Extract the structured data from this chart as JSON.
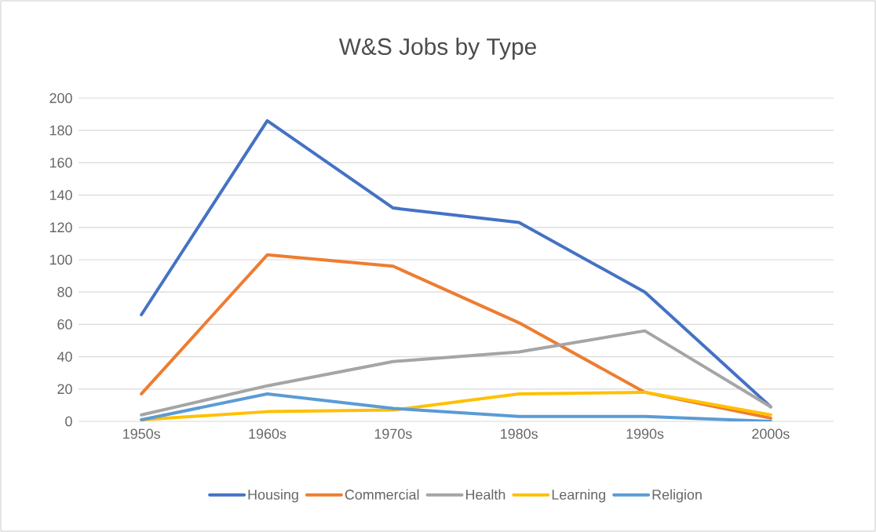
{
  "chart_data": {
    "type": "line",
    "title": "W&S Jobs by Type",
    "categories": [
      "1950s",
      "1960s",
      "1970s",
      "1980s",
      "1990s",
      "2000s"
    ],
    "series": [
      {
        "name": "Housing",
        "color": "#4472c4",
        "values": [
          66,
          186,
          132,
          123,
          80,
          9
        ]
      },
      {
        "name": "Commercial",
        "color": "#ed7d31",
        "values": [
          17,
          103,
          96,
          61,
          18,
          2
        ]
      },
      {
        "name": "Health",
        "color": "#a5a5a5",
        "values": [
          4,
          22,
          37,
          43,
          56,
          9
        ]
      },
      {
        "name": "Learning",
        "color": "#ffc000",
        "values": [
          1,
          6,
          7,
          17,
          18,
          4
        ]
      },
      {
        "name": "Religion",
        "color": "#5b9bd5",
        "values": [
          1,
          17,
          8,
          3,
          3,
          0
        ]
      }
    ],
    "ylim": [
      0,
      200
    ],
    "yticks": [
      0,
      20,
      40,
      60,
      80,
      100,
      120,
      140,
      160,
      180,
      200
    ],
    "grid": "y",
    "legend": "bottom",
    "marker": "none",
    "line_style": "solid"
  }
}
